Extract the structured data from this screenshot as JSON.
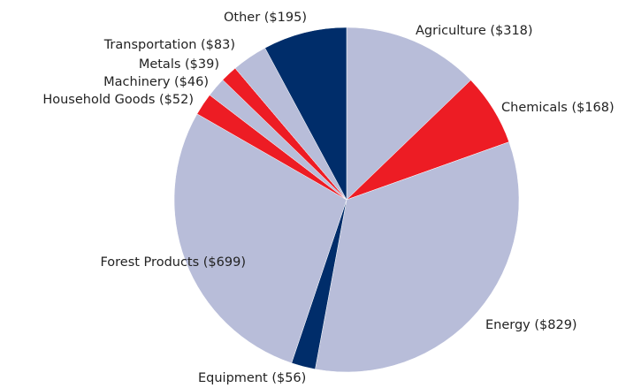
{
  "chart_data": {
    "type": "pie",
    "categories": [
      "Agriculture ($318)",
      "Chemicals ($168)",
      "Energy ($829)",
      "Equipment ($56)",
      "Forest Products ($699)",
      "Household Goods ($52)",
      "Machinery ($46)",
      "Metals ($39)",
      "Transportation ($83)",
      "Other ($195)"
    ],
    "values": [
      318,
      168,
      829,
      56,
      699,
      52,
      46,
      39,
      83,
      195
    ],
    "colors": [
      "#b8bdd9",
      "#ed1c24",
      "#b8bdd9",
      "#002d6a",
      "#b8bdd9",
      "#ed1c24",
      "#b8bdd9",
      "#ed1c24",
      "#b8bdd9",
      "#002d6a"
    ]
  }
}
